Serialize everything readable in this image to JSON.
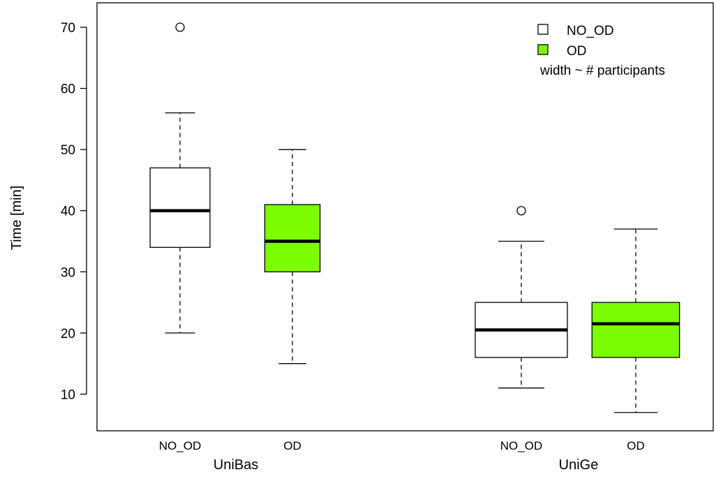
{
  "chart_data": {
    "type": "boxplot",
    "title": "",
    "xlabel": "",
    "ylabel": "Time [min]",
    "ylim": [
      4,
      74
    ],
    "yticks": [
      10,
      20,
      30,
      40,
      50,
      60,
      70
    ],
    "groups": [
      "UniBas",
      "UniGe"
    ],
    "boxes": [
      {
        "group": "UniBas",
        "label": "NO_OD",
        "color": "#ffffff",
        "whisker_low": 20,
        "q1": 34,
        "median": 40,
        "q3": 47,
        "whisker_high": 56,
        "outliers": [
          70
        ],
        "relative_width": 0.65
      },
      {
        "group": "UniBas",
        "label": "OD",
        "color": "#7cfc00",
        "whisker_low": 15,
        "q1": 30,
        "median": 35,
        "q3": 41,
        "whisker_high": 50,
        "outliers": [],
        "relative_width": 0.6
      },
      {
        "group": "UniGe",
        "label": "NO_OD",
        "color": "#ffffff",
        "whisker_low": 11,
        "q1": 16,
        "median": 20.5,
        "q3": 25,
        "whisker_high": 35,
        "outliers": [
          40
        ],
        "relative_width": 1.0
      },
      {
        "group": "UniGe",
        "label": "OD",
        "color": "#7cfc00",
        "whisker_low": 7,
        "q1": 16,
        "median": 21.5,
        "q3": 25,
        "whisker_high": 37,
        "outliers": [],
        "relative_width": 0.95
      }
    ],
    "legend": {
      "placement": "top-right",
      "entries": [
        {
          "label": "NO_OD",
          "color": "#ffffff"
        },
        {
          "label": "OD",
          "color": "#7cfc00"
        }
      ],
      "note": "width ~ # participants"
    },
    "grid": false
  }
}
